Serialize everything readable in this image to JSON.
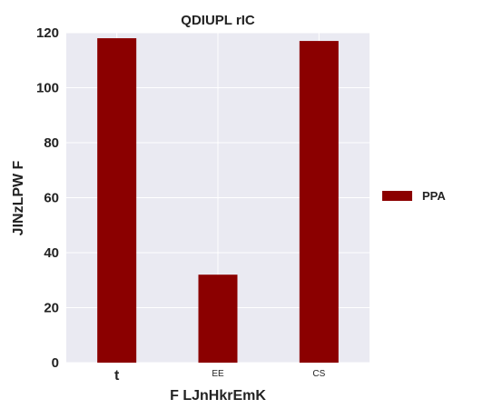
{
  "chart_data": {
    "type": "bar",
    "title": "QDIUPL rIC",
    "xlabel": "F LJnHkrEmK",
    "ylabel": "JINzLPW F",
    "categories": [
      "t",
      "EE",
      "CS"
    ],
    "series": [
      {
        "name": "PPA",
        "values": [
          118,
          32,
          117
        ],
        "color": "#8b0000"
      }
    ],
    "ylim": [
      0,
      120
    ],
    "yticks": [
      0,
      20,
      40,
      60,
      80,
      100,
      120
    ],
    "grid": true,
    "legend_position": "right",
    "colors": {
      "plot_background": "#eaeaf2",
      "grid": "#ffffff",
      "text": "#222222"
    }
  }
}
